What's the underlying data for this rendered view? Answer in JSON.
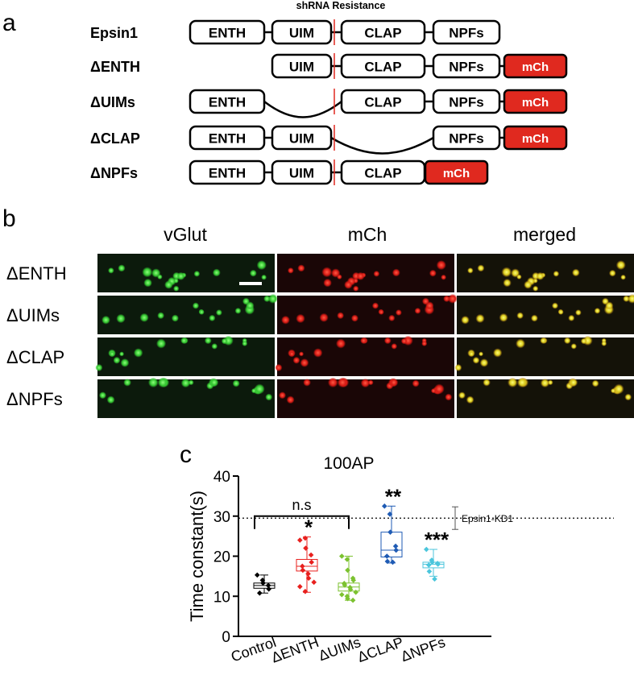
{
  "panel_a": {
    "letter": "a",
    "resistance_label": "shRNA Resistance",
    "rows": [
      {
        "name": "Epsin1",
        "domains": [
          "ENTH",
          "UIM",
          "CLAP",
          "NPFs"
        ],
        "tag": ""
      },
      {
        "name": "ΔENTH",
        "domains": [
          "UIM",
          "CLAP",
          "NPFs"
        ],
        "tag": "mCh"
      },
      {
        "name": "ΔUIMs",
        "domains": [
          "ENTH",
          "CLAP",
          "NPFs"
        ],
        "tag": "mCh"
      },
      {
        "name": "ΔCLAP",
        "domains": [
          "ENTH",
          "UIM",
          "NPFs"
        ],
        "tag": "mCh"
      },
      {
        "name": "ΔNPFs",
        "domains": [
          "ENTH",
          "UIM",
          "CLAP"
        ],
        "tag": "mCh"
      }
    ],
    "colors": {
      "tag": "#e0291f",
      "cut": "#e0291f"
    }
  },
  "panel_b": {
    "letter": "b",
    "columns": [
      "vGlut",
      "mCh",
      "merged"
    ],
    "rows": [
      "ΔENTH",
      "ΔUIMs",
      "ΔCLAP",
      "ΔNPFs"
    ],
    "colors": {
      "vglut": "#3dd63d",
      "mch": "#e8201e",
      "merged": "#e8e020"
    }
  },
  "panel_c": {
    "letter": "c",
    "chart_data": {
      "type": "box",
      "title": "100AP",
      "ylabel": "Time constant(s)",
      "ylim": [
        0,
        40
      ],
      "yticks": [
        0,
        10,
        20,
        30,
        40
      ],
      "categories": [
        "Control",
        "ΔENTH",
        "ΔUIMs",
        "ΔCLAP",
        "ΔNPFs"
      ],
      "colors": [
        "#000000",
        "#e8201e",
        "#7cc230",
        "#1f5bb4",
        "#4cc6dc"
      ],
      "markers": [
        "diamond",
        "diamond",
        "diamond",
        "diamond",
        "diamond"
      ],
      "boxes": [
        {
          "min": 10.8,
          "q1": 12,
          "median": 12.7,
          "q3": 13.3,
          "max": 15.3
        },
        {
          "min": 11,
          "q1": 16.3,
          "median": 17.5,
          "q3": 19.2,
          "max": 24.8
        },
        {
          "min": 9,
          "q1": 11.3,
          "median": 12.3,
          "q3": 13.3,
          "max": 20
        },
        {
          "min": 18.3,
          "q1": 19.8,
          "median": 21.5,
          "q3": 26,
          "max": 32.5
        },
        {
          "min": 15,
          "q1": 17.1,
          "median": 18,
          "q3": 18.5,
          "max": 21.7
        }
      ],
      "points": [
        [
          15.3,
          14,
          13.3,
          12.7,
          11.8,
          10.8
        ],
        [
          24,
          24.5,
          22,
          20.3,
          18.5,
          17.5,
          16.5,
          15.6,
          14.5,
          13.5,
          12.4,
          11.2
        ],
        [
          20,
          19.2,
          16.5,
          14.5,
          14,
          13.2,
          12.8,
          12.2,
          11.7,
          11,
          10.4,
          10,
          9.4,
          9
        ],
        [
          32.5,
          30.5,
          26,
          22.5,
          21.5,
          20,
          18.7,
          18.5
        ],
        [
          21.7,
          19,
          18.5,
          18.2,
          18,
          17.8,
          16.2,
          14.3
        ]
      ],
      "reference_line": {
        "y": 29.5,
        "label": "Epsin1-KD1",
        "style": "dotted"
      },
      "significance": [
        "",
        "*",
        "",
        "**",
        "***"
      ],
      "ns_bracket": {
        "from": 0,
        "to": 2,
        "label": "n.s",
        "y": 30
      }
    }
  }
}
